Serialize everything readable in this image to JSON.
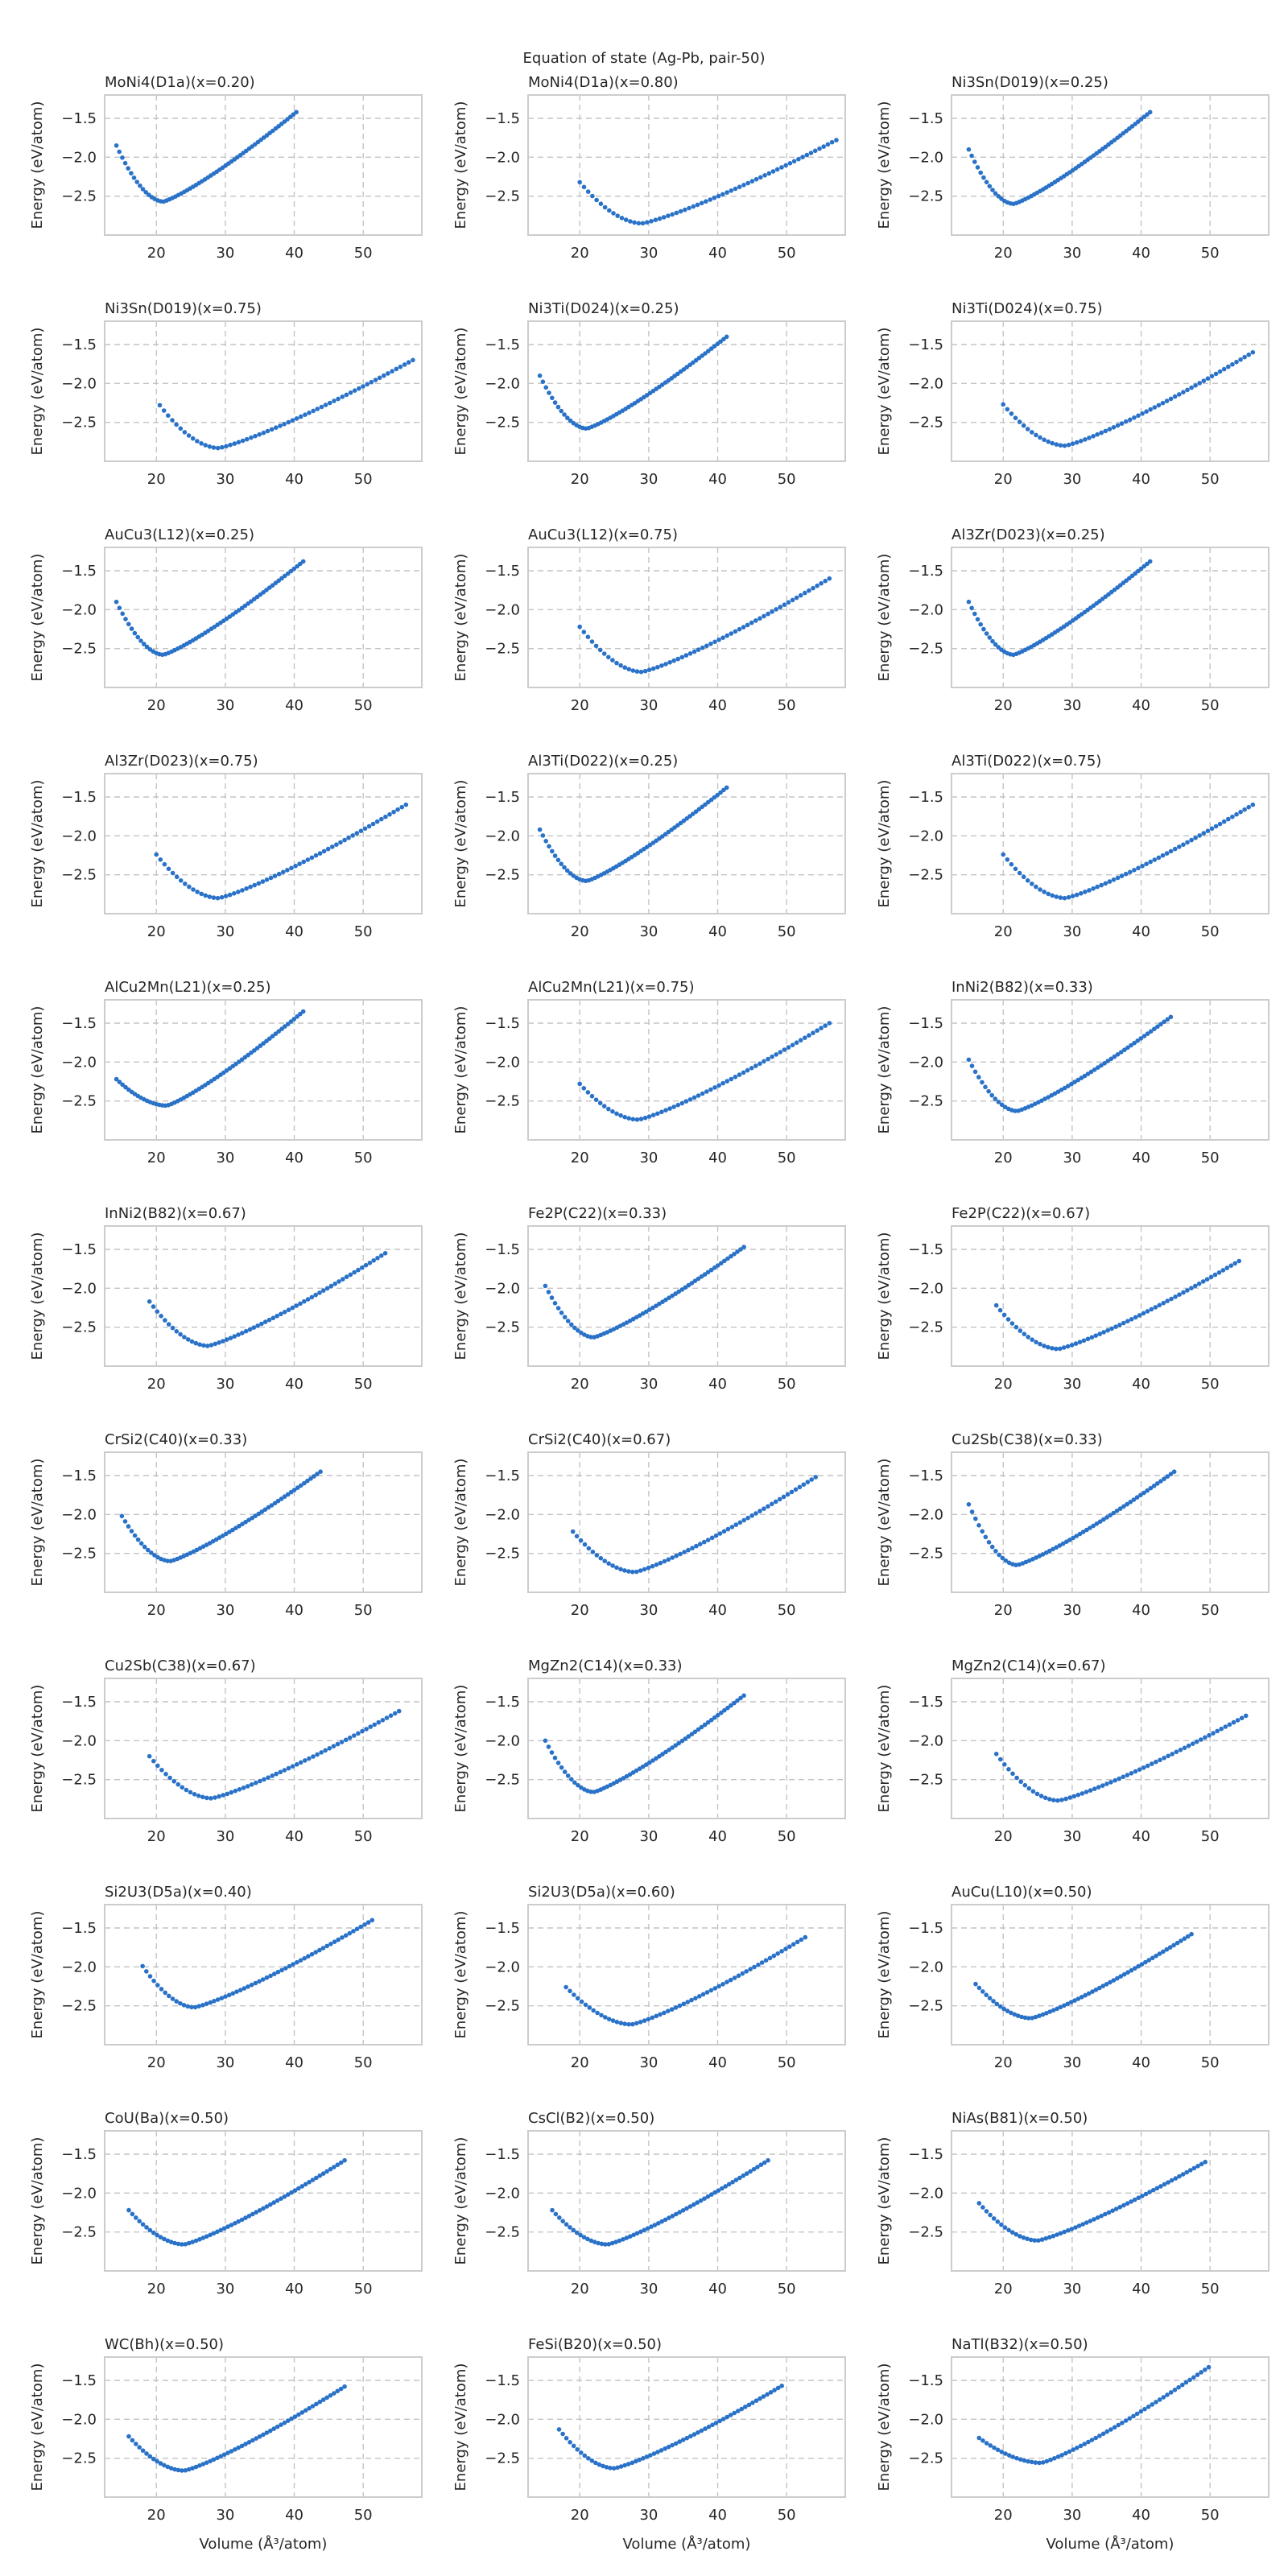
{
  "figure": {
    "title": "Equation of state (Ag-Pb, pair-50)",
    "xlabel": "Volume (Å³/atom)",
    "ylabel": "Energy (eV/atom)"
  },
  "style": {
    "series_color": "#2a72c8",
    "grid_color": "#c4c4c4",
    "spine_color": "#cccccc",
    "text_color": "#262626"
  },
  "chart_data": {
    "type": "scatter",
    "grid": true,
    "layout": {
      "rows": 11,
      "cols": 3
    },
    "xlim": [
      12.5,
      58.5
    ],
    "ylim": [
      -3.0,
      -1.2
    ],
    "xticks": [
      20,
      30,
      40,
      50
    ],
    "yticks": [
      -1.5,
      -2.0,
      -2.5
    ],
    "panels": [
      {
        "title": "MoNi4(D1a)(x=0.20)",
        "vmin": 14.2,
        "vmax": 40.3,
        "v0": 21.0,
        "emin": -2.57,
        "eleft": -1.85,
        "eright": -1.42
      },
      {
        "title": "MoNi4(D1a)(x=0.80)",
        "vmin": 20.0,
        "vmax": 57.2,
        "v0": 29.0,
        "emin": -2.85,
        "eleft": -2.32,
        "eright": -1.78
      },
      {
        "title": "Ni3Sn(D019)(x=0.25)",
        "vmin": 15.0,
        "vmax": 41.3,
        "v0": 21.5,
        "emin": -2.6,
        "eleft": -1.9,
        "eright": -1.42
      },
      {
        "title": "Ni3Sn(D019)(x=0.75)",
        "vmin": 20.5,
        "vmax": 57.2,
        "v0": 29.0,
        "emin": -2.83,
        "eleft": -2.28,
        "eright": -1.7
      },
      {
        "title": "Ni3Ti(D024)(x=0.25)",
        "vmin": 14.2,
        "vmax": 41.3,
        "v0": 21.0,
        "emin": -2.58,
        "eleft": -1.9,
        "eright": -1.4
      },
      {
        "title": "Ni3Ti(D024)(x=0.75)",
        "vmin": 20.0,
        "vmax": 56.2,
        "v0": 29.0,
        "emin": -2.8,
        "eleft": -2.27,
        "eright": -1.6
      },
      {
        "title": "AuCu3(L12)(x=0.25)",
        "vmin": 14.2,
        "vmax": 41.3,
        "v0": 21.0,
        "emin": -2.58,
        "eleft": -1.9,
        "eright": -1.38
      },
      {
        "title": "AuCu3(L12)(x=0.75)",
        "vmin": 20.0,
        "vmax": 56.2,
        "v0": 29.0,
        "emin": -2.8,
        "eleft": -2.22,
        "eright": -1.6
      },
      {
        "title": "Al3Zr(D023)(x=0.25)",
        "vmin": 15.0,
        "vmax": 41.3,
        "v0": 21.5,
        "emin": -2.58,
        "eleft": -1.9,
        "eright": -1.38
      },
      {
        "title": "Al3Zr(D023)(x=0.75)",
        "vmin": 20.0,
        "vmax": 56.2,
        "v0": 29.0,
        "emin": -2.8,
        "eleft": -2.24,
        "eright": -1.6
      },
      {
        "title": "Al3Ti(D022)(x=0.25)",
        "vmin": 14.2,
        "vmax": 41.3,
        "v0": 21.0,
        "emin": -2.58,
        "eleft": -1.92,
        "eright": -1.38
      },
      {
        "title": "Al3Ti(D022)(x=0.75)",
        "vmin": 20.0,
        "vmax": 56.2,
        "v0": 29.0,
        "emin": -2.8,
        "eleft": -2.24,
        "eright": -1.6
      },
      {
        "title": "AlCu2Mn(L21)(x=0.25)",
        "vmin": 14.2,
        "vmax": 41.3,
        "v0": 21.5,
        "emin": -2.56,
        "eleft": -2.22,
        "eright": -1.35
      },
      {
        "title": "AlCu2Mn(L21)(x=0.75)",
        "vmin": 20.0,
        "vmax": 56.2,
        "v0": 28.5,
        "emin": -2.74,
        "eleft": -2.28,
        "eright": -1.5
      },
      {
        "title": "InNi2(B82)(x=0.33)",
        "vmin": 15.0,
        "vmax": 44.3,
        "v0": 22.0,
        "emin": -2.63,
        "eleft": -1.97,
        "eright": -1.42
      },
      {
        "title": "InNi2(B82)(x=0.67)",
        "vmin": 19.0,
        "vmax": 53.2,
        "v0": 27.5,
        "emin": -2.74,
        "eleft": -2.17,
        "eright": -1.55
      },
      {
        "title": "Fe2P(C22)(x=0.33)",
        "vmin": 15.0,
        "vmax": 43.8,
        "v0": 22.0,
        "emin": -2.63,
        "eleft": -1.97,
        "eright": -1.47
      },
      {
        "title": "Fe2P(C22)(x=0.67)",
        "vmin": 19.0,
        "vmax": 54.2,
        "v0": 28.0,
        "emin": -2.78,
        "eleft": -2.22,
        "eright": -1.65
      },
      {
        "title": "CrSi2(C40)(x=0.33)",
        "vmin": 15.0,
        "vmax": 43.8,
        "v0": 22.0,
        "emin": -2.6,
        "eleft": -2.02,
        "eright": -1.45
      },
      {
        "title": "CrSi2(C40)(x=0.67)",
        "vmin": 19.0,
        "vmax": 54.2,
        "v0": 28.0,
        "emin": -2.74,
        "eleft": -2.22,
        "eright": -1.52
      },
      {
        "title": "Cu2Sb(C38)(x=0.33)",
        "vmin": 15.0,
        "vmax": 44.8,
        "v0": 22.0,
        "emin": -2.65,
        "eleft": -1.87,
        "eright": -1.45
      },
      {
        "title": "Cu2Sb(C38)(x=0.67)",
        "vmin": 19.0,
        "vmax": 55.2,
        "v0": 28.0,
        "emin": -2.74,
        "eleft": -2.2,
        "eright": -1.62
      },
      {
        "title": "MgZn2(C14)(x=0.33)",
        "vmin": 15.0,
        "vmax": 43.8,
        "v0": 22.0,
        "emin": -2.66,
        "eleft": -2.0,
        "eright": -1.42
      },
      {
        "title": "MgZn2(C14)(x=0.67)",
        "vmin": 19.0,
        "vmax": 55.2,
        "v0": 28.0,
        "emin": -2.77,
        "eleft": -2.17,
        "eright": -1.68
      },
      {
        "title": "Si2U3(D5a)(x=0.40)",
        "vmin": 18.0,
        "vmax": 51.3,
        "v0": 25.5,
        "emin": -2.52,
        "eleft": -1.99,
        "eright": -1.4
      },
      {
        "title": "Si2U3(D5a)(x=0.60)",
        "vmin": 18.0,
        "vmax": 52.7,
        "v0": 27.5,
        "emin": -2.74,
        "eleft": -2.26,
        "eright": -1.62
      },
      {
        "title": "AuCu(L10)(x=0.50)",
        "vmin": 16.0,
        "vmax": 47.3,
        "v0": 24.0,
        "emin": -2.66,
        "eleft": -2.22,
        "eright": -1.58
      },
      {
        "title": "CoU(Ba)(x=0.50)",
        "vmin": 16.0,
        "vmax": 47.3,
        "v0": 24.0,
        "emin": -2.66,
        "eleft": -2.22,
        "eright": -1.58
      },
      {
        "title": "CsCl(B2)(x=0.50)",
        "vmin": 16.0,
        "vmax": 47.3,
        "v0": 24.0,
        "emin": -2.66,
        "eleft": -2.22,
        "eright": -1.58
      },
      {
        "title": "NiAs(B81)(x=0.50)",
        "vmin": 16.5,
        "vmax": 49.3,
        "v0": 25.0,
        "emin": -2.61,
        "eleft": -2.13,
        "eright": -1.6
      },
      {
        "title": "WC(Bh)(x=0.50)",
        "vmin": 16.0,
        "vmax": 47.3,
        "v0": 24.0,
        "emin": -2.66,
        "eleft": -2.22,
        "eright": -1.58
      },
      {
        "title": "FeSi(B20)(x=0.50)",
        "vmin": 17.0,
        "vmax": 49.3,
        "v0": 25.0,
        "emin": -2.63,
        "eleft": -2.13,
        "eright": -1.57
      },
      {
        "title": "NaTl(B32)(x=0.50)",
        "vmin": 16.5,
        "vmax": 49.8,
        "v0": 25.5,
        "emin": -2.56,
        "eleft": -2.24,
        "eright": -1.33
      }
    ]
  }
}
